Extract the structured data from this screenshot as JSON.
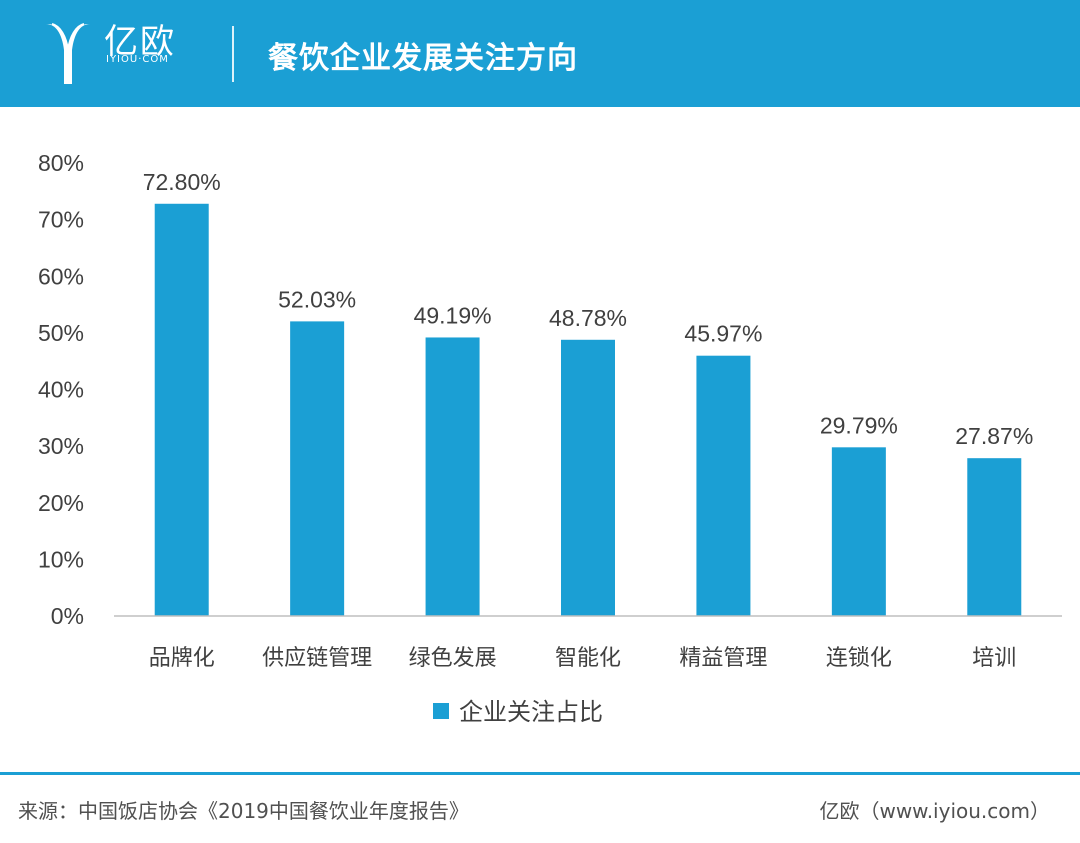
{
  "header": {
    "logo_cn": "亿欧",
    "logo_en": "IYIOU·COM",
    "title": "餐饮企业发展关注方向"
  },
  "colors": {
    "brand": "#1b9fd4",
    "bar": "#1b9fd4",
    "text": "#404040"
  },
  "chart_data": {
    "type": "bar",
    "title": "餐饮企业发展关注方向",
    "categories": [
      "品牌化",
      "供应链管理",
      "绿色发展",
      "智能化",
      "精益管理",
      "连锁化",
      "培训"
    ],
    "series": [
      {
        "name": "企业关注占比",
        "values": [
          72.8,
          52.03,
          49.19,
          48.78,
          45.97,
          29.79,
          27.87
        ]
      }
    ],
    "data_labels": [
      "72.80%",
      "52.03%",
      "49.19%",
      "48.78%",
      "45.97%",
      "29.79%",
      "27.87%"
    ],
    "y_ticks": [
      "0%",
      "10%",
      "20%",
      "30%",
      "40%",
      "50%",
      "60%",
      "70%",
      "80%"
    ],
    "ylim": [
      0,
      80
    ],
    "xlabel": "",
    "ylabel": "",
    "grid": false,
    "legend_position": "bottom"
  },
  "footer": {
    "source": "来源：中国饭店协会《2019中国餐饮业年度报告》",
    "credit": "亿欧（www.iyiou.com）"
  }
}
